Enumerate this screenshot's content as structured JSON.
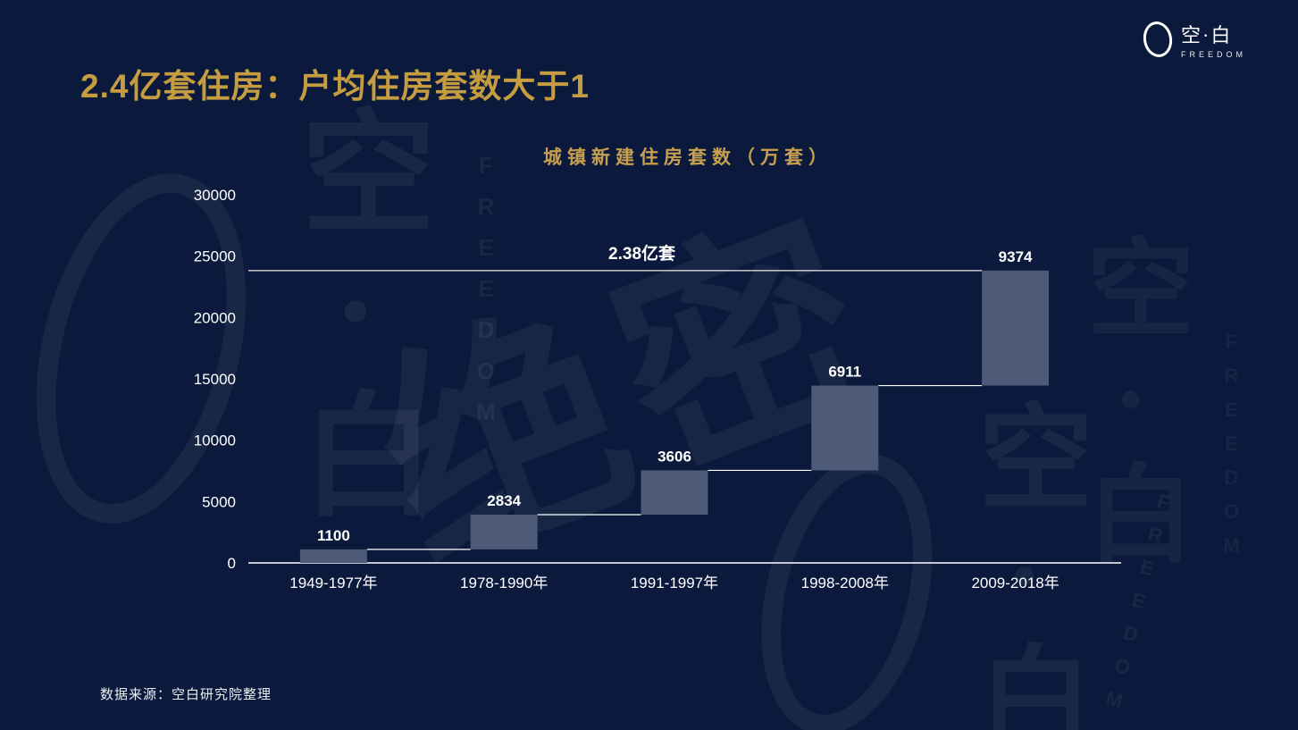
{
  "page": {
    "title": "2.4亿套住房：户均住房套数大于1",
    "source_note": "数据来源：空白研究院整理"
  },
  "logo": {
    "name": "空·白",
    "subtitle": "FREEDOM"
  },
  "watermark": {
    "secret_text": "绝密",
    "logo_name": "空·白",
    "logo_subtitle": "FREEDOM"
  },
  "chart_data": {
    "type": "bar",
    "subtype": "waterfall",
    "title": "城镇新建住房套数（万套）",
    "categories": [
      "1949-1977年",
      "1978-1990年",
      "1991-1997年",
      "1998-2008年",
      "2009-2018年"
    ],
    "values": [
      1100,
      2834,
      3606,
      6911,
      9374
    ],
    "cumulative": [
      1100,
      3934,
      7540,
      14451,
      23825
    ],
    "total_line": {
      "value": 23825,
      "label": "2.38亿套"
    },
    "ylabel": "",
    "xlabel": "",
    "ylim": [
      0,
      30000
    ],
    "yticks": [
      0,
      5000,
      10000,
      15000,
      20000,
      25000,
      30000
    ],
    "grid": false,
    "legend": "none",
    "colors": {
      "background": "#0b1a3c",
      "bar": "#4d5b78",
      "axis_text": "#ffffff",
      "axis_line": "#ffffff",
      "connector": "#ffffff",
      "total_line": "#d9d9d9",
      "title": "#c79f4e",
      "accent_gold": "#c59c3f"
    }
  }
}
